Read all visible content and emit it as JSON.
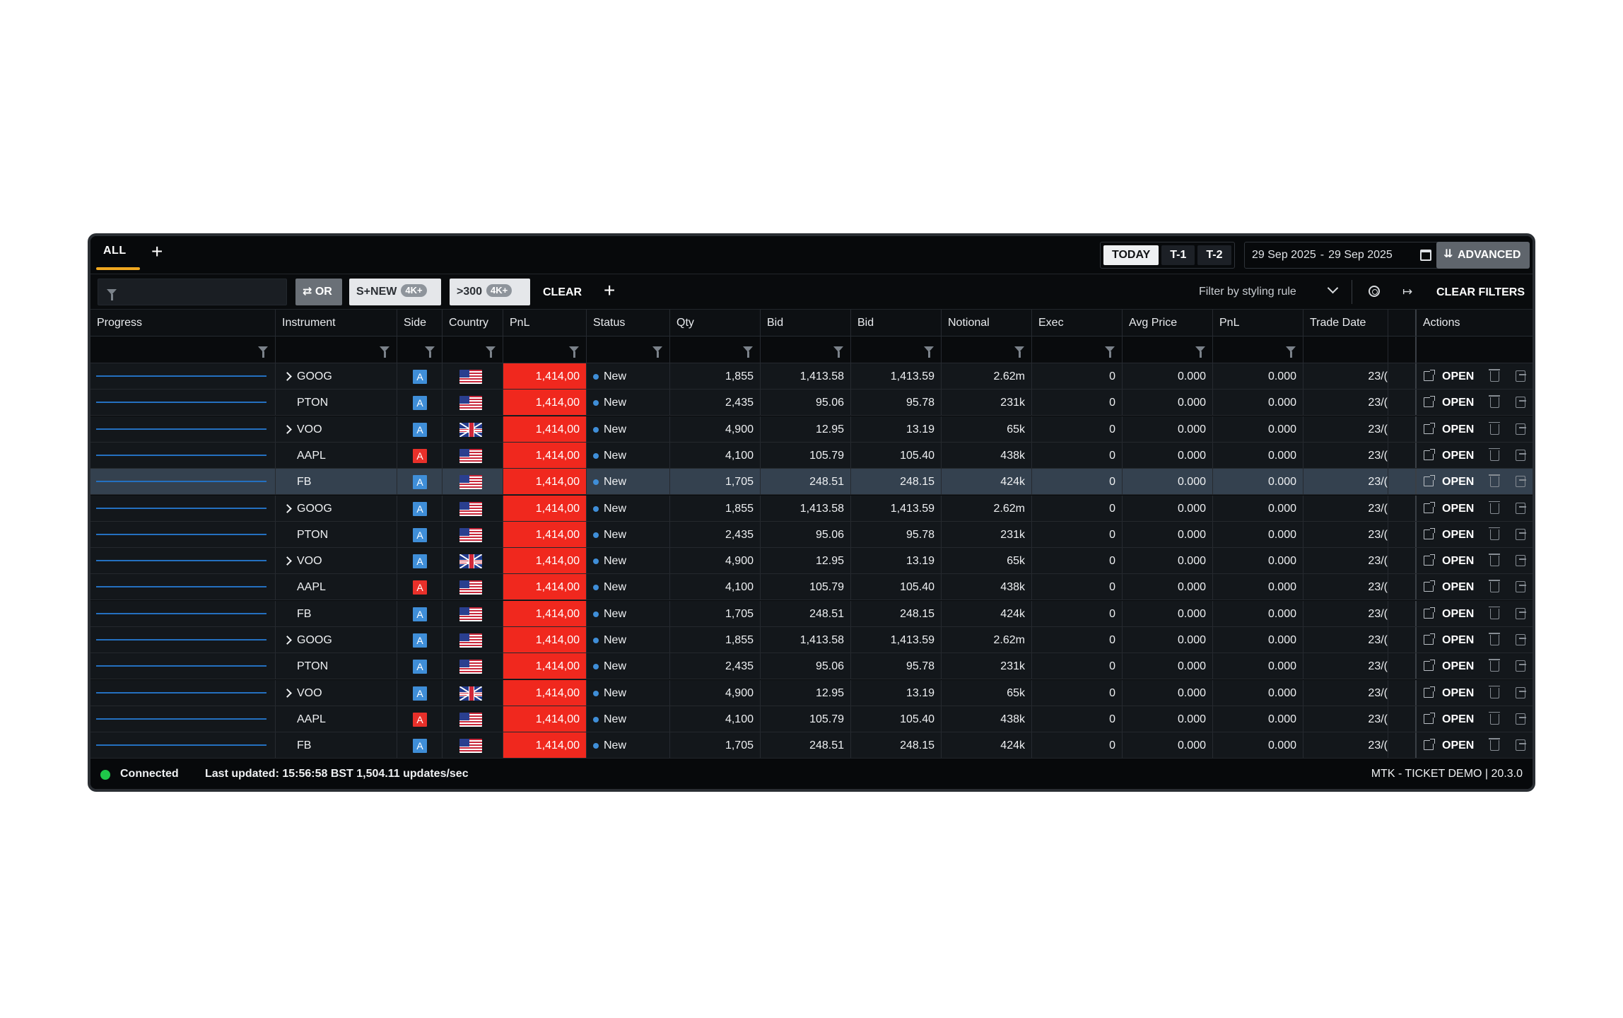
{
  "tabs": {
    "active": "ALL",
    "add_icon": "plus-icon"
  },
  "date_controls": {
    "day_buttons": [
      "TODAY",
      "T-1",
      "T-2"
    ],
    "active_day": "TODAY",
    "date_from": "29 Sep 2025",
    "date_sep": "-",
    "date_to": "29 Sep 2025",
    "calendar_icon": "calendar-icon",
    "advanced_label": "ADVANCED"
  },
  "filter_bar": {
    "search_value": "",
    "search_placeholder": "",
    "chips": [
      {
        "label": "OR",
        "icon": "swap-icon",
        "badge": ""
      },
      {
        "label": "S+NEW",
        "badge": "4K+"
      },
      {
        "label": ">300",
        "badge": "4K+"
      }
    ],
    "clear_label": "CLEAR",
    "styling_rule_placeholder": "Filter by styling rule",
    "clear_filters_label": "CLEAR FILTERS"
  },
  "columns": [
    "Progress",
    "Instrument",
    "Side",
    "Country",
    "PnL",
    "Status",
    "Qty",
    "Bid",
    "Bid",
    "Notional",
    "Exec",
    "Avg Price",
    "PnL",
    "Trade Date",
    "Actions"
  ],
  "colors": {
    "pnl_negative": "#f0281e",
    "side_buy": "#3f8ed8",
    "side_sell": "#e8302a",
    "status_new": "#3f8ed8",
    "connected": "#1fc84a",
    "tab_underline": "#f0a820",
    "progress_line": "#2470c0"
  },
  "rows": [
    {
      "expandable": true,
      "instrument": "GOOG",
      "side": "A",
      "side_color": "#3f8ed8",
      "country": "us",
      "pnl": "1,414,00",
      "status": "New",
      "qty": "1,855",
      "bid1": "1,413.58",
      "bid2": "1,413.59",
      "notional": "2.62m",
      "exec": "0",
      "avg_price": "0.000",
      "pnl2": "0.000",
      "trade_date": "23/(",
      "action": "OPEN"
    },
    {
      "expandable": false,
      "instrument": "PTON",
      "side": "A",
      "side_color": "#3f8ed8",
      "country": "us",
      "pnl": "1,414,00",
      "status": "New",
      "qty": "2,435",
      "bid1": "95.06",
      "bid2": "95.78",
      "notional": "231k",
      "exec": "0",
      "avg_price": "0.000",
      "pnl2": "0.000",
      "trade_date": "23/(",
      "action": "OPEN"
    },
    {
      "expandable": true,
      "instrument": "VOO",
      "side": "A",
      "side_color": "#3f8ed8",
      "country": "gb",
      "pnl": "1,414,00",
      "status": "New",
      "qty": "4,900",
      "bid1": "12.95",
      "bid2": "13.19",
      "notional": "65k",
      "exec": "0",
      "avg_price": "0.000",
      "pnl2": "0.000",
      "trade_date": "23/(",
      "action": "OPEN"
    },
    {
      "expandable": false,
      "instrument": "AAPL",
      "side": "A",
      "side_color": "#e8302a",
      "country": "us",
      "pnl": "1,414,00",
      "status": "New",
      "qty": "4,100",
      "bid1": "105.79",
      "bid2": "105.40",
      "notional": "438k",
      "exec": "0",
      "avg_price": "0.000",
      "pnl2": "0.000",
      "trade_date": "23/(",
      "action": "OPEN"
    },
    {
      "expandable": false,
      "instrument": "FB",
      "side": "A",
      "side_color": "#3f8ed8",
      "country": "us",
      "pnl": "1,414,00",
      "status": "New",
      "qty": "1,705",
      "bid1": "248.51",
      "bid2": "248.15",
      "notional": "424k",
      "exec": "0",
      "avg_price": "0.000",
      "pnl2": "0.000",
      "trade_date": "23/(",
      "action": "OPEN",
      "selected": true
    },
    {
      "expandable": true,
      "instrument": "GOOG",
      "side": "A",
      "side_color": "#3f8ed8",
      "country": "us",
      "pnl": "1,414,00",
      "status": "New",
      "qty": "1,855",
      "bid1": "1,413.58",
      "bid2": "1,413.59",
      "notional": "2.62m",
      "exec": "0",
      "avg_price": "0.000",
      "pnl2": "0.000",
      "trade_date": "23/(",
      "action": "OPEN"
    },
    {
      "expandable": false,
      "instrument": "PTON",
      "side": "A",
      "side_color": "#3f8ed8",
      "country": "us",
      "pnl": "1,414,00",
      "status": "New",
      "qty": "2,435",
      "bid1": "95.06",
      "bid2": "95.78",
      "notional": "231k",
      "exec": "0",
      "avg_price": "0.000",
      "pnl2": "0.000",
      "trade_date": "23/(",
      "action": "OPEN"
    },
    {
      "expandable": true,
      "instrument": "VOO",
      "side": "A",
      "side_color": "#3f8ed8",
      "country": "gb",
      "pnl": "1,414,00",
      "status": "New",
      "qty": "4,900",
      "bid1": "12.95",
      "bid2": "13.19",
      "notional": "65k",
      "exec": "0",
      "avg_price": "0.000",
      "pnl2": "0.000",
      "trade_date": "23/(",
      "action": "OPEN"
    },
    {
      "expandable": false,
      "instrument": "AAPL",
      "side": "A",
      "side_color": "#e8302a",
      "country": "us",
      "pnl": "1,414,00",
      "status": "New",
      "qty": "4,100",
      "bid1": "105.79",
      "bid2": "105.40",
      "notional": "438k",
      "exec": "0",
      "avg_price": "0.000",
      "pnl2": "0.000",
      "trade_date": "23/(",
      "action": "OPEN"
    },
    {
      "expandable": false,
      "instrument": "FB",
      "side": "A",
      "side_color": "#3f8ed8",
      "country": "us",
      "pnl": "1,414,00",
      "status": "New",
      "qty": "1,705",
      "bid1": "248.51",
      "bid2": "248.15",
      "notional": "424k",
      "exec": "0",
      "avg_price": "0.000",
      "pnl2": "0.000",
      "trade_date": "23/(",
      "action": "OPEN"
    },
    {
      "expandable": true,
      "instrument": "GOOG",
      "side": "A",
      "side_color": "#3f8ed8",
      "country": "us",
      "pnl": "1,414,00",
      "status": "New",
      "qty": "1,855",
      "bid1": "1,413.58",
      "bid2": "1,413.59",
      "notional": "2.62m",
      "exec": "0",
      "avg_price": "0.000",
      "pnl2": "0.000",
      "trade_date": "23/(",
      "action": "OPEN"
    },
    {
      "expandable": false,
      "instrument": "PTON",
      "side": "A",
      "side_color": "#3f8ed8",
      "country": "us",
      "pnl": "1,414,00",
      "status": "New",
      "qty": "2,435",
      "bid1": "95.06",
      "bid2": "95.78",
      "notional": "231k",
      "exec": "0",
      "avg_price": "0.000",
      "pnl2": "0.000",
      "trade_date": "23/(",
      "action": "OPEN"
    },
    {
      "expandable": true,
      "instrument": "VOO",
      "side": "A",
      "side_color": "#3f8ed8",
      "country": "gb",
      "pnl": "1,414,00",
      "status": "New",
      "qty": "4,900",
      "bid1": "12.95",
      "bid2": "13.19",
      "notional": "65k",
      "exec": "0",
      "avg_price": "0.000",
      "pnl2": "0.000",
      "trade_date": "23/(",
      "action": "OPEN"
    },
    {
      "expandable": false,
      "instrument": "AAPL",
      "side": "A",
      "side_color": "#e8302a",
      "country": "us",
      "pnl": "1,414,00",
      "status": "New",
      "qty": "4,100",
      "bid1": "105.79",
      "bid2": "105.40",
      "notional": "438k",
      "exec": "0",
      "avg_price": "0.000",
      "pnl2": "0.000",
      "trade_date": "23/(",
      "action": "OPEN"
    },
    {
      "expandable": false,
      "instrument": "FB",
      "side": "A",
      "side_color": "#3f8ed8",
      "country": "us",
      "pnl": "1,414,00",
      "status": "New",
      "qty": "1,705",
      "bid1": "248.51",
      "bid2": "248.15",
      "notional": "424k",
      "exec": "0",
      "avg_price": "0.000",
      "pnl2": "0.000",
      "trade_date": "23/(",
      "action": "OPEN"
    }
  ],
  "status_bar": {
    "connection": "Connected",
    "last_updated": "Last updated: 15:56:58 BST 1,504.11 updates/sec",
    "version": "MTK - TICKET DEMO | 20.3.0"
  }
}
